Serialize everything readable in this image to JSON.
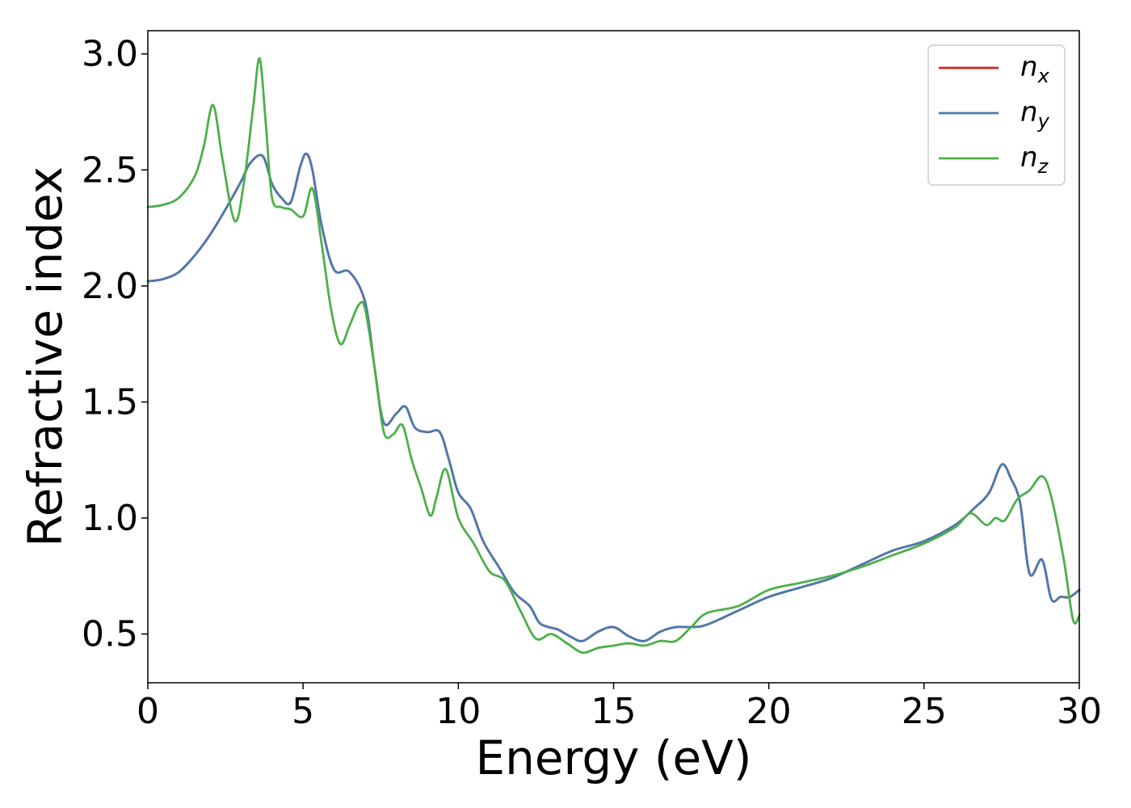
{
  "chart_data": {
    "type": "line",
    "title": "",
    "xlabel": "Energy (eV)",
    "ylabel": "Refractive index",
    "xlim": [
      0,
      30
    ],
    "ylim": [
      0.29,
      3.1
    ],
    "xticks": [
      0,
      5,
      10,
      15,
      20,
      25,
      30
    ],
    "xtick_labels": [
      "0",
      "5",
      "10",
      "15",
      "20",
      "25",
      "30"
    ],
    "yticks": [
      0.5,
      1.0,
      1.5,
      2.0,
      2.5,
      3.0
    ],
    "ytick_labels": [
      "0.5",
      "1.0",
      "1.5",
      "2.0",
      "2.5",
      "3.0"
    ],
    "grid": false,
    "legend_position": "top-right",
    "series": [
      {
        "name": "n_x",
        "label_main": "n",
        "label_sub": "x",
        "color": "#e41a1c",
        "x": [
          0,
          0.5,
          1,
          1.5,
          2,
          2.5,
          3,
          3.3,
          3.7,
          4,
          4.3,
          4.6,
          4.9,
          5.1,
          5.3,
          5.6,
          6,
          6.5,
          7,
          7.3,
          7.6,
          8,
          8.3,
          8.6,
          9,
          9.4,
          9.7,
          10,
          10.4,
          10.8,
          11.3,
          11.8,
          12.3,
          12.6,
          12.9,
          13.2,
          13.6,
          14,
          14.5,
          15,
          15.5,
          16,
          16.5,
          17,
          17.5,
          18,
          19,
          20,
          21,
          22,
          23,
          24,
          25,
          26,
          26.6,
          27.1,
          27.5,
          27.8,
          28.1,
          28.4,
          28.8,
          29.1,
          29.4,
          29.7,
          30
        ],
        "values": [
          2.02,
          2.03,
          2.06,
          2.13,
          2.22,
          2.33,
          2.45,
          2.53,
          2.56,
          2.44,
          2.38,
          2.36,
          2.51,
          2.57,
          2.5,
          2.26,
          2.07,
          2.06,
          1.93,
          1.65,
          1.41,
          1.45,
          1.48,
          1.39,
          1.37,
          1.37,
          1.25,
          1.11,
          1.04,
          0.9,
          0.79,
          0.68,
          0.62,
          0.55,
          0.53,
          0.52,
          0.49,
          0.47,
          0.51,
          0.53,
          0.49,
          0.47,
          0.51,
          0.53,
          0.53,
          0.54,
          0.6,
          0.66,
          0.7,
          0.74,
          0.8,
          0.86,
          0.9,
          0.97,
          1.04,
          1.11,
          1.23,
          1.17,
          1.06,
          0.76,
          0.82,
          0.65,
          0.66,
          0.66,
          0.69
        ]
      },
      {
        "name": "n_y",
        "label_main": "n",
        "label_sub": "y",
        "color": "#4a7ab0",
        "x": [
          0,
          0.5,
          1,
          1.5,
          2,
          2.5,
          3,
          3.3,
          3.7,
          4,
          4.3,
          4.6,
          4.9,
          5.1,
          5.3,
          5.6,
          6,
          6.5,
          7,
          7.3,
          7.6,
          8,
          8.3,
          8.6,
          9,
          9.4,
          9.7,
          10,
          10.4,
          10.8,
          11.3,
          11.8,
          12.3,
          12.6,
          12.9,
          13.2,
          13.6,
          14,
          14.5,
          15,
          15.5,
          16,
          16.5,
          17,
          17.5,
          18,
          19,
          20,
          21,
          22,
          23,
          24,
          25,
          26,
          26.6,
          27.1,
          27.5,
          27.8,
          28.1,
          28.4,
          28.8,
          29.1,
          29.4,
          29.7,
          30
        ],
        "values": [
          2.02,
          2.03,
          2.06,
          2.13,
          2.22,
          2.33,
          2.45,
          2.53,
          2.56,
          2.44,
          2.38,
          2.36,
          2.51,
          2.57,
          2.5,
          2.26,
          2.07,
          2.06,
          1.93,
          1.65,
          1.41,
          1.45,
          1.48,
          1.39,
          1.37,
          1.37,
          1.25,
          1.11,
          1.04,
          0.9,
          0.79,
          0.68,
          0.62,
          0.55,
          0.53,
          0.52,
          0.49,
          0.47,
          0.51,
          0.53,
          0.49,
          0.47,
          0.51,
          0.53,
          0.53,
          0.54,
          0.6,
          0.66,
          0.7,
          0.74,
          0.8,
          0.86,
          0.9,
          0.97,
          1.04,
          1.11,
          1.23,
          1.17,
          1.06,
          0.76,
          0.82,
          0.65,
          0.66,
          0.66,
          0.69
        ]
      },
      {
        "name": "n_z",
        "label_main": "n",
        "label_sub": "z",
        "color": "#4daf4a",
        "x": [
          0,
          0.5,
          1,
          1.5,
          1.8,
          2.1,
          2.4,
          2.8,
          3.1,
          3.4,
          3.6,
          3.8,
          4,
          4.3,
          4.6,
          5,
          5.3,
          5.6,
          5.9,
          6.2,
          6.5,
          6.8,
          7,
          7.3,
          7.6,
          7.9,
          8.2,
          8.5,
          8.8,
          9.1,
          9.3,
          9.6,
          10,
          10.5,
          11,
          11.5,
          12,
          12.5,
          13,
          13.5,
          14,
          14.5,
          15,
          15.5,
          16,
          16.5,
          17,
          17.5,
          18,
          19,
          20,
          21,
          22,
          23,
          24,
          25,
          26,
          26.5,
          27,
          27.3,
          27.6,
          28,
          28.4,
          28.8,
          29.1,
          29.5,
          29.8,
          30
        ],
        "values": [
          2.34,
          2.35,
          2.38,
          2.47,
          2.6,
          2.78,
          2.55,
          2.28,
          2.45,
          2.78,
          2.98,
          2.7,
          2.38,
          2.34,
          2.33,
          2.3,
          2.42,
          2.18,
          1.9,
          1.75,
          1.83,
          1.92,
          1.9,
          1.65,
          1.37,
          1.36,
          1.4,
          1.25,
          1.13,
          1.01,
          1.09,
          1.21,
          1.0,
          0.89,
          0.77,
          0.73,
          0.6,
          0.48,
          0.5,
          0.46,
          0.42,
          0.44,
          0.45,
          0.46,
          0.45,
          0.47,
          0.47,
          0.53,
          0.59,
          0.62,
          0.69,
          0.72,
          0.75,
          0.79,
          0.84,
          0.89,
          0.96,
          1.02,
          0.97,
          1.0,
          0.99,
          1.08,
          1.12,
          1.18,
          1.09,
          0.82,
          0.56,
          0.58
        ]
      }
    ]
  }
}
